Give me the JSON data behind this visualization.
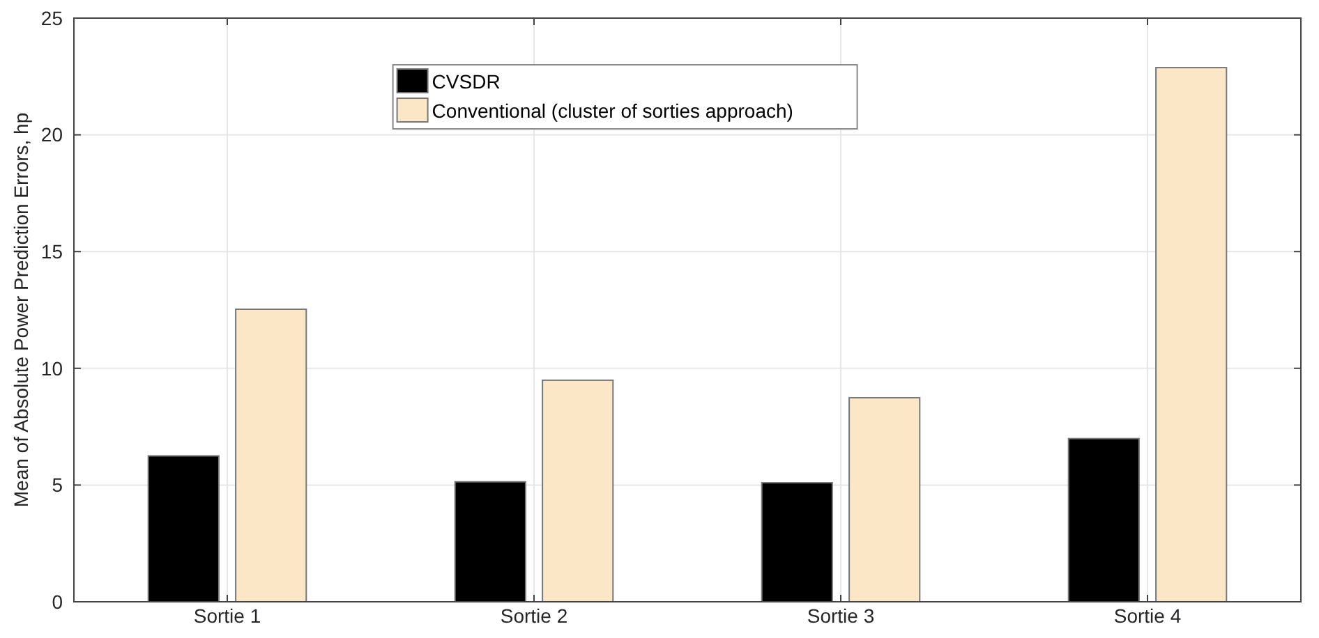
{
  "chart_data": {
    "type": "bar",
    "ylabel": "Mean of Absolute Power Prediction Errors, hp",
    "categories": [
      "Sortie 1",
      "Sortie 2",
      "Sortie 3",
      "Sortie 4"
    ],
    "series": [
      {
        "name": "CVSDR",
        "color": "#000000",
        "values": [
          6.25,
          5.14,
          5.1,
          6.99
        ]
      },
      {
        "name": "Conventional (cluster of sorties approach)",
        "color": "#fbe7c6",
        "values": [
          12.53,
          9.49,
          8.74,
          22.88
        ]
      }
    ],
    "ylim": [
      0,
      25
    ],
    "yticks": [
      0,
      5,
      10,
      15,
      20,
      25
    ],
    "grid": true,
    "legend": "top"
  }
}
